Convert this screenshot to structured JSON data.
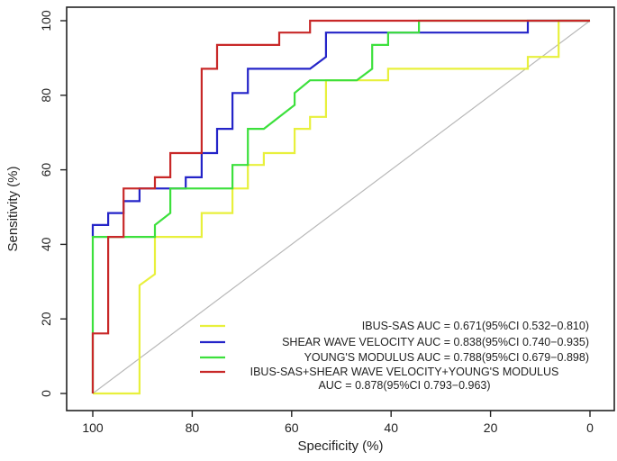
{
  "chart_data": {
    "type": "line",
    "title": "",
    "xlabel": "Specificity (%)",
    "ylabel": "Sensitivity (%)",
    "xlim": [
      100,
      0
    ],
    "ylim": [
      0,
      100
    ],
    "x_ticks": [
      100,
      80,
      60,
      40,
      20,
      0
    ],
    "y_ticks": [
      0,
      20,
      40,
      60,
      80,
      100
    ],
    "grid": false,
    "reference_line": {
      "from": [
        100,
        0
      ],
      "to": [
        0,
        100
      ],
      "color": "#b8b8b8"
    },
    "legend_position": "bottom-right",
    "series": [
      {
        "name": "IBUS-SAS",
        "legend_label": "IBUS-SAS AUC = 0.671(95%CI 0.532−0.810)",
        "color": "#e8f03c",
        "points": [
          [
            100,
            0
          ],
          [
            90.6,
            0
          ],
          [
            90.6,
            29
          ],
          [
            87.5,
            32
          ],
          [
            87.5,
            42
          ],
          [
            78.1,
            42
          ],
          [
            78.1,
            48.4
          ],
          [
            71.9,
            48.4
          ],
          [
            71.9,
            55
          ],
          [
            68.8,
            55
          ],
          [
            68.8,
            61.3
          ],
          [
            65.6,
            61.3
          ],
          [
            65.6,
            64.5
          ],
          [
            59.4,
            64.5
          ],
          [
            59.4,
            71
          ],
          [
            56.3,
            71
          ],
          [
            56.3,
            74.2
          ],
          [
            53.1,
            74.2
          ],
          [
            53.1,
            84
          ],
          [
            40.6,
            84
          ],
          [
            40.6,
            87.1
          ],
          [
            12.5,
            87.1
          ],
          [
            12.5,
            90.3
          ],
          [
            6.3,
            90.3
          ],
          [
            6.3,
            100
          ],
          [
            0,
            100
          ]
        ]
      },
      {
        "name": "SHEAR WAVE VELOCITY",
        "legend_label": "SHEAR WAVE VELOCITY AUC = 0.838(95%CI 0.740−0.935)",
        "color": "#2424c8",
        "points": [
          [
            100,
            42
          ],
          [
            100,
            45.2
          ],
          [
            96.9,
            45.2
          ],
          [
            96.9,
            48.4
          ],
          [
            93.8,
            48.4
          ],
          [
            93.8,
            51.6
          ],
          [
            90.6,
            51.6
          ],
          [
            90.6,
            55
          ],
          [
            81.3,
            55
          ],
          [
            81.3,
            58
          ],
          [
            78.1,
            58
          ],
          [
            78.1,
            64.5
          ],
          [
            75,
            64.5
          ],
          [
            75,
            71
          ],
          [
            71.9,
            71
          ],
          [
            71.9,
            80.6
          ],
          [
            68.8,
            80.6
          ],
          [
            68.8,
            87.1
          ],
          [
            56.3,
            87.1
          ],
          [
            53.1,
            90.3
          ],
          [
            53.1,
            96.8
          ],
          [
            12.5,
            96.8
          ],
          [
            12.5,
            100
          ],
          [
            0,
            100
          ]
        ]
      },
      {
        "name": "YOUNG'S MODULUS",
        "legend_label": "YOUNG'S MODULUS  AUC = 0.788(95%CI 0.679−0.898)",
        "color": "#3ce03c",
        "points": [
          [
            100,
            0
          ],
          [
            100,
            42
          ],
          [
            87.5,
            42
          ],
          [
            87.5,
            45.2
          ],
          [
            84.4,
            48.4
          ],
          [
            84.4,
            55
          ],
          [
            71.9,
            55
          ],
          [
            71.9,
            61.3
          ],
          [
            68.8,
            61.3
          ],
          [
            68.8,
            71
          ],
          [
            65.6,
            71
          ],
          [
            59.4,
            77.4
          ],
          [
            59.4,
            80.6
          ],
          [
            56.3,
            84
          ],
          [
            46.9,
            84
          ],
          [
            43.8,
            87.1
          ],
          [
            43.8,
            90.3
          ],
          [
            43.8,
            93.5
          ],
          [
            40.6,
            93.5
          ],
          [
            40.6,
            96.8
          ],
          [
            34.4,
            96.8
          ],
          [
            34.4,
            100
          ],
          [
            0,
            100
          ]
        ]
      },
      {
        "name": "IBUS-SAS+SHEAR WAVE VELOCITY+YOUNG'S MODULUS",
        "legend_label": "IBUS-SAS+SHEAR WAVE VELOCITY+YOUNG'S MODULUS",
        "legend_label_line2": "AUC = 0.878(95%CI 0.793−0.963)",
        "color": "#c82828",
        "points": [
          [
            100,
            0
          ],
          [
            100,
            16.1
          ],
          [
            96.9,
            16.1
          ],
          [
            96.9,
            42
          ],
          [
            93.8,
            42
          ],
          [
            93.8,
            55
          ],
          [
            87.5,
            55
          ],
          [
            87.5,
            58
          ],
          [
            84.4,
            58
          ],
          [
            84.4,
            64.5
          ],
          [
            78.1,
            64.5
          ],
          [
            78.1,
            87.1
          ],
          [
            75,
            87.1
          ],
          [
            75,
            93.5
          ],
          [
            62.5,
            93.5
          ],
          [
            62.5,
            96.8
          ],
          [
            56.3,
            96.8
          ],
          [
            56.3,
            100
          ],
          [
            0,
            100
          ]
        ]
      }
    ]
  }
}
